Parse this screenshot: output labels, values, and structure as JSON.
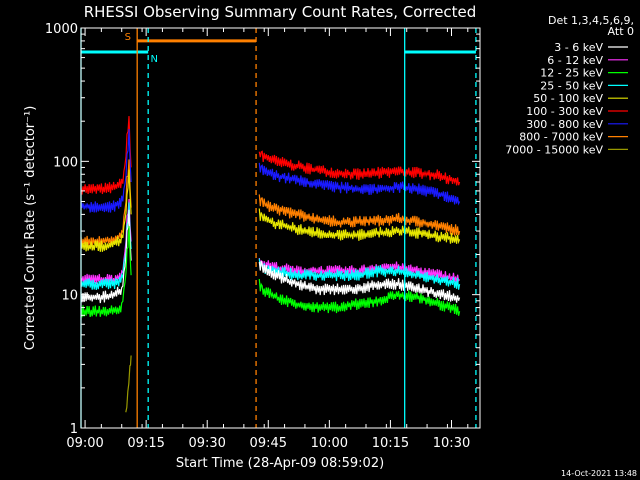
{
  "chart_data": {
    "type": "line",
    "title": "RHESSI Observing Summary Count Rates, Corrected",
    "xlabel": "Start Time (28-Apr-09 08:59:02)",
    "ylabel": "Corrected Count Rate (s⁻¹ detector⁻¹)",
    "x_unit": "minutes",
    "xlim": [
      0,
      98
    ],
    "ylim": [
      1,
      1000
    ],
    "y_scale": "log",
    "x_ticks": [
      {
        "value": 1,
        "label": "09:00"
      },
      {
        "value": 16,
        "label": "09:15"
      },
      {
        "value": 31,
        "label": "09:30"
      },
      {
        "value": 46,
        "label": "09:45"
      },
      {
        "value": 61,
        "label": "10:00"
      },
      {
        "value": 76,
        "label": "10:15"
      },
      {
        "value": 91,
        "label": "10:30"
      }
    ],
    "y_ticks": [
      {
        "value": 1,
        "label": "1"
      },
      {
        "value": 10,
        "label": "10"
      },
      {
        "value": 100,
        "label": "100"
      },
      {
        "value": 1000,
        "label": "1000"
      }
    ],
    "legend": {
      "position": "right",
      "header": [
        "Det 1,3,4,5,6,9,",
        "Att 0"
      ],
      "entries": [
        {
          "label": "3 - 6 keV",
          "color": "#ffffff"
        },
        {
          "label": "6 - 12 keV",
          "color": "#ff33ff"
        },
        {
          "label": "12 - 25 keV",
          "color": "#00ff00"
        },
        {
          "label": "25 - 50 keV",
          "color": "#00ffff"
        },
        {
          "label": "50 - 100 keV",
          "color": "#e6e600"
        },
        {
          "label": "100 - 300 keV",
          "color": "#ff0000"
        },
        {
          "label": "300 - 800 keV",
          "color": "#1a1aff"
        },
        {
          "label": "800 - 7000 keV",
          "color": "#ff8000"
        },
        {
          "label": "7000 - 15000 keV",
          "color": "#999900"
        }
      ]
    },
    "series": [
      {
        "color": "#ff0000",
        "segments": [
          {
            "x": [
              0,
              5,
              8,
              10,
              10.8,
              11.3,
              11.8,
              12.3
            ],
            "y": [
              62,
              62,
              64,
              68,
              90,
              150,
              210,
              90
            ]
          },
          {
            "x": [
              43.8,
              44.5,
              48,
              53,
              58,
              63,
              68,
              73,
              78,
              83,
              88,
              93
            ],
            "y": [
              115,
              110,
              100,
              92,
              86,
              82,
              80,
              82,
              84,
              82,
              78,
              70
            ]
          }
        ]
      },
      {
        "color": "#1a1aff",
        "segments": [
          {
            "x": [
              0,
              5,
              8,
              10,
              10.8,
              11.3,
              11.8,
              12.3
            ],
            "y": [
              46,
              45,
              46,
              50,
              65,
              110,
              160,
              70
            ]
          },
          {
            "x": [
              43.8,
              44.5,
              48,
              53,
              58,
              63,
              68,
              73,
              78,
              83,
              88,
              93
            ],
            "y": [
              90,
              85,
              78,
              72,
              67,
              64,
              62,
              62,
              64,
              62,
              57,
              50
            ]
          }
        ]
      },
      {
        "color": "#ff8000",
        "segments": [
          {
            "x": [
              0,
              5,
              8,
              10,
              10.8,
              11.3,
              11.8,
              12.3
            ],
            "y": [
              25,
              25,
              26,
              28,
              40,
              70,
              100,
              45
            ]
          },
          {
            "x": [
              43.8,
              44.5,
              48,
              53,
              58,
              63,
              68,
              73,
              78,
              83,
              88,
              93
            ],
            "y": [
              52,
              48,
              44,
              40,
              37,
              35,
              35,
              36,
              37,
              35,
              33,
              30
            ]
          }
        ]
      },
      {
        "color": "#e6e600",
        "segments": [
          {
            "x": [
              0,
              5,
              8,
              10,
              10.8,
              11.3,
              11.8,
              12.3
            ],
            "y": [
              23,
              23,
              24,
              26,
              35,
              55,
              80,
              40
            ]
          },
          {
            "x": [
              43.8,
              44.5,
              48,
              53,
              58,
              63,
              68,
              73,
              78,
              83,
              88,
              93
            ],
            "y": [
              40,
              38,
              34,
              31,
              29,
              28,
              28,
              29,
              30,
              29,
              27,
              26
            ]
          }
        ]
      },
      {
        "color": "#ff33ff",
        "segments": [
          {
            "x": [
              0,
              5,
              8,
              10,
              10.8,
              11.3,
              11.8,
              12.3
            ],
            "y": [
              13,
              13,
              13,
              14,
              20,
              35,
              50,
              25
            ]
          },
          {
            "x": [
              43.8,
              44.5,
              48,
              53,
              58,
              63,
              68,
              73,
              78,
              83,
              88,
              93
            ],
            "y": [
              18,
              17,
              16,
              15,
              15,
              15,
              15,
              16,
              16,
              15,
              14,
              13
            ]
          }
        ]
      },
      {
        "color": "#00ffff",
        "segments": [
          {
            "x": [
              0,
              5,
              8,
              10,
              10.8,
              11.3,
              11.8,
              12.3
            ],
            "y": [
              12,
              12,
              12,
              13,
              18,
              30,
              45,
              22
            ]
          },
          {
            "x": [
              43.8,
              44.5,
              48,
              53,
              58,
              63,
              68,
              73,
              78,
              83,
              88,
              93
            ],
            "y": [
              17,
              16,
              15,
              14,
              14,
              14,
              14,
              15,
              15,
              14,
              13,
              12
            ]
          }
        ]
      },
      {
        "color": "#ffffff",
        "segments": [
          {
            "x": [
              0,
              5,
              8,
              10,
              10.8,
              11.3,
              11.8,
              12.3
            ],
            "y": [
              9.5,
              9.5,
              10,
              11,
              16,
              28,
              40,
              18
            ]
          },
          {
            "x": [
              43.8,
              44.5,
              48,
              53,
              58,
              63,
              68,
              73,
              78,
              83,
              88,
              93
            ],
            "y": [
              17,
              16,
              14,
              12,
              11,
              11,
              11,
              12,
              12,
              11,
              10,
              9.5
            ]
          }
        ]
      },
      {
        "color": "#00ff00",
        "segments": [
          {
            "x": [
              0,
              5,
              8,
              10,
              10.8,
              11.3,
              11.8,
              12.3
            ],
            "y": [
              7.5,
              7.5,
              7.5,
              8,
              12,
              20,
              30,
              14
            ]
          },
          {
            "x": [
              43.8,
              44.5,
              48,
              53,
              58,
              63,
              68,
              73,
              78,
              83,
              88,
              93
            ],
            "y": [
              12,
              11,
              9.5,
              8.5,
              8,
              8,
              8.5,
              9,
              10,
              9.5,
              8.5,
              7.5
            ]
          }
        ]
      },
      {
        "color": "#999900",
        "segments": [
          {
            "x": [
              11,
              11.5,
              12,
              12.3
            ],
            "y": [
              1.2,
              1.8,
              2.8,
              3.5
            ]
          }
        ]
      }
    ],
    "annotations": [
      {
        "type": "bar",
        "label": "S",
        "color": "#ff8000",
        "x_start": 13.8,
        "x_end": 43,
        "y": 800,
        "label_x": 11.5
      },
      {
        "type": "bar",
        "label": "N",
        "color": "#00ffff",
        "x_start": 0,
        "x_end": 16.5,
        "y": 660,
        "label_x": 18
      },
      {
        "type": "bar",
        "color": "#00ffff",
        "x_start": 79.5,
        "x_end": 97,
        "y": 660
      },
      {
        "type": "vline",
        "color": "#00ffff",
        "x": 0,
        "style": "solid"
      },
      {
        "type": "vline",
        "color": "#ff8000",
        "x": 13.8,
        "style": "solid"
      },
      {
        "type": "vline",
        "color": "#00ffff",
        "x": 16.5,
        "style": "dashed"
      },
      {
        "type": "vline",
        "color": "#ff8000",
        "x": 43,
        "style": "dashed"
      },
      {
        "type": "vline",
        "color": "#00ffff",
        "x": 79.5,
        "style": "solid"
      },
      {
        "type": "vline",
        "color": "#00ffff",
        "x": 97,
        "style": "dashed"
      }
    ]
  },
  "timestamp": "14-Oct-2021 13:48"
}
